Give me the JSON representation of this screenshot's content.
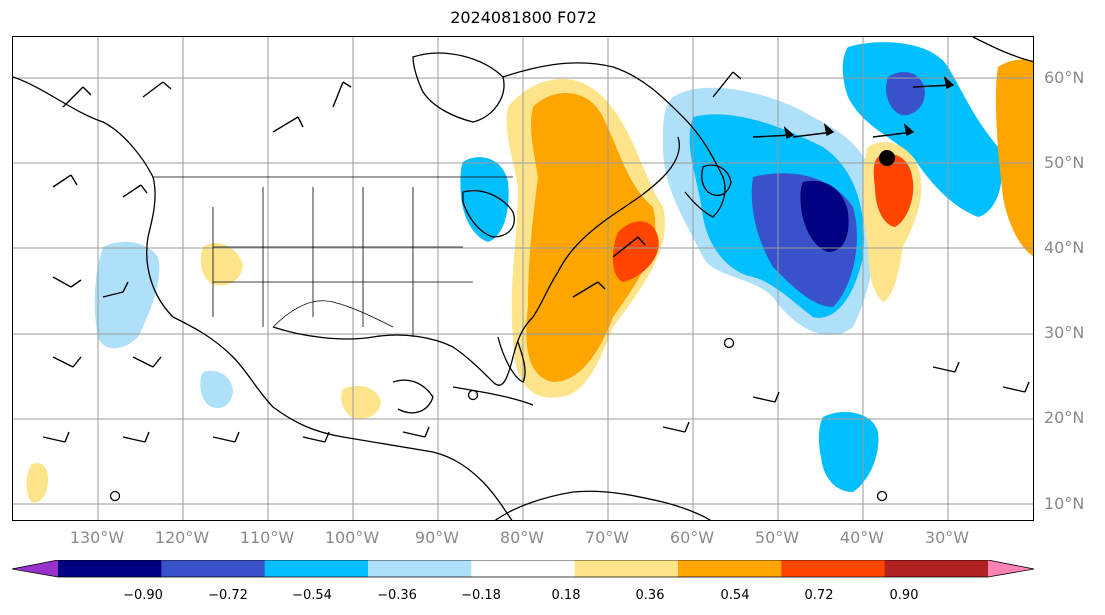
{
  "title": "2024081800 F072",
  "lat_labels": [
    "60°N",
    "50°N",
    "40°N",
    "30°N",
    "20°N",
    "10°N"
  ],
  "lon_labels": [
    "130°W",
    "120°W",
    "110°W",
    "100°W",
    "90°W",
    "80°W",
    "70°W",
    "60°W",
    "50°W",
    "40°W",
    "30°W"
  ],
  "colorbar": {
    "ticks": [
      "−0.90",
      "−0.72",
      "−0.54",
      "−0.36",
      "−0.18",
      "0.18",
      "0.36",
      "0.54",
      "0.72",
      "0.90"
    ],
    "colors": [
      "#9932cc",
      "#000080",
      "#3a52c9",
      "#00bfff",
      "#aee0fa",
      "#ffffff",
      "#fde48a",
      "#ffa500",
      "#ff4500",
      "#b22222",
      "#ff82b4"
    ],
    "extend": "both"
  },
  "symbols": {
    "high_marker": "black-dot",
    "calm_marker": "open-circle"
  }
}
